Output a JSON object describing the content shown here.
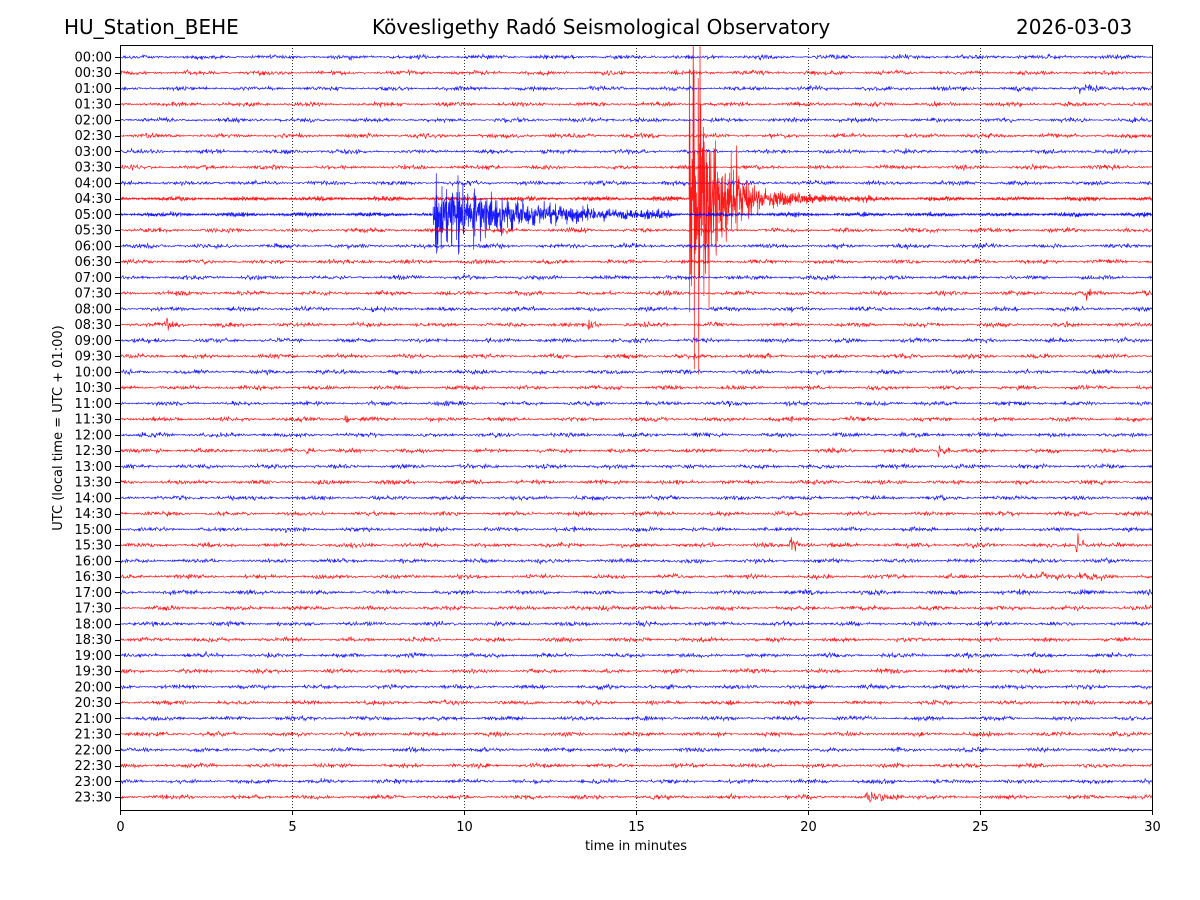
{
  "header": {
    "station": "HU_Station_BEHE",
    "observatory": "Kövesligethy Radó Seismological Observatory",
    "date": "2026-03-03"
  },
  "chart_data": {
    "type": "line",
    "title": "Kövesligethy Radó Seismological Observatory",
    "xlabel": "time in minutes",
    "ylabel": "UTC (local time = UTC + 01:00)",
    "xlim": [
      0,
      30
    ],
    "xticks": [
      "0",
      "5",
      "10",
      "15",
      "20",
      "25",
      "30"
    ],
    "xtick_values": [
      0,
      5,
      10,
      15,
      20,
      25,
      30
    ],
    "grid": "vertical dotted at x ticks",
    "row_labels": [
      "00:00",
      "00:30",
      "01:00",
      "01:30",
      "02:00",
      "02:30",
      "03:00",
      "03:30",
      "04:00",
      "04:30",
      "05:00",
      "05:30",
      "06:00",
      "06:30",
      "07:00",
      "07:30",
      "08:00",
      "08:30",
      "09:00",
      "09:30",
      "10:00",
      "10:30",
      "11:00",
      "11:30",
      "12:00",
      "12:30",
      "13:00",
      "13:30",
      "14:00",
      "14:30",
      "15:00",
      "15:30",
      "16:00",
      "16:30",
      "17:00",
      "17:30",
      "18:00",
      "18:30",
      "19:00",
      "19:30",
      "20:00",
      "20:30",
      "21:00",
      "21:30",
      "22:00",
      "22:30",
      "23:00",
      "23:30"
    ],
    "series_colors": [
      "#0000ff",
      "#ff0000"
    ],
    "noise_amplitude_rows": 0.12,
    "events": [
      {
        "row": "05:00",
        "start_min": 9.1,
        "peak_amp_rows": 3.2,
        "decay_min": 2.2,
        "end_min": 16
      },
      {
        "row": "04:30",
        "start_min": 16.55,
        "peak_amp_rows": 22,
        "decay_min": 0.55,
        "end_min": 22
      },
      {
        "row": "15:30",
        "start_min": 19.45,
        "peak_amp_rows": 1.4,
        "decay_min": 0.15,
        "end_min": 20.2
      },
      {
        "row": "15:30",
        "start_min": 27.8,
        "peak_amp_rows": 1.4,
        "decay_min": 0.15,
        "end_min": 28.6
      },
      {
        "row": "12:30",
        "start_min": 23.75,
        "peak_amp_rows": 0.9,
        "decay_min": 0.15,
        "end_min": 24.4
      },
      {
        "row": "23:30",
        "start_min": 21.7,
        "peak_amp_rows": 0.35,
        "decay_min": 0.8,
        "end_min": 23.3
      },
      {
        "row": "08:30",
        "start_min": 13.6,
        "peak_amp_rows": 0.7,
        "decay_min": 0.1,
        "end_min": 13.9
      },
      {
        "row": "08:30",
        "start_min": 1.3,
        "peak_amp_rows": 0.3,
        "decay_min": 0.3,
        "end_min": 2.0
      },
      {
        "row": "11:30",
        "start_min": 6.55,
        "peak_amp_rows": 0.6,
        "decay_min": 0.1,
        "end_min": 6.8
      },
      {
        "row": "12:30",
        "start_min": 5.4,
        "peak_amp_rows": 0.4,
        "decay_min": 0.15,
        "end_min": 5.8
      },
      {
        "row": "01:00",
        "start_min": 27.9,
        "peak_amp_rows": 0.3,
        "decay_min": 0.5,
        "end_min": 30
      },
      {
        "row": "17:30",
        "start_min": 13.9,
        "peak_amp_rows": 0.3,
        "decay_min": 0.4,
        "end_min": 15
      },
      {
        "row": "16:30",
        "start_min": 26.8,
        "peak_amp_rows": 0.3,
        "decay_min": 1.0,
        "end_min": 29
      },
      {
        "row": "07:30",
        "start_min": 28.1,
        "peak_amp_rows": 0.35,
        "decay_min": 0.2,
        "end_min": 28.6
      }
    ]
  }
}
